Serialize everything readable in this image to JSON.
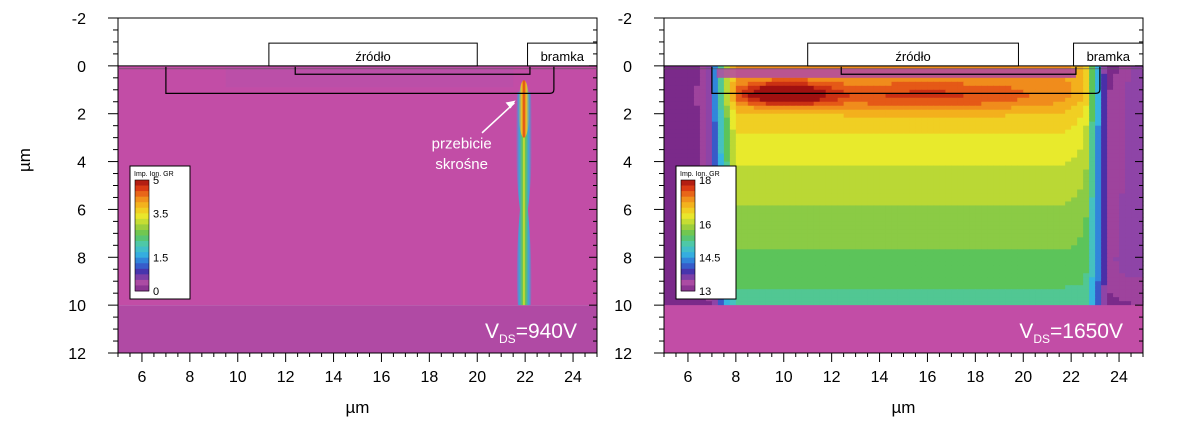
{
  "chart_data": {
    "type": "heatmap",
    "y_axis_label": "µm",
    "panels": [
      {
        "id": "left",
        "x_axis_label": "µm",
        "x_ticks": [
          "6",
          "8",
          "10",
          "12",
          "14",
          "16",
          "18",
          "20",
          "22",
          "24"
        ],
        "y_ticks": [
          "-2",
          "0",
          "2",
          "4",
          "6",
          "8",
          "10",
          "12"
        ],
        "xlim": [
          5,
          25
        ],
        "ylim": [
          -2,
          12
        ],
        "y_inverted": true,
        "device_labels": {
          "source": "źródło",
          "gate": "bramka"
        },
        "annotation": [
          "przebicie",
          "skrośne"
        ],
        "condition": {
          "base": "V",
          "sub": "DS",
          "value": "=940V"
        },
        "colorbar": {
          "title": "Imp. Ion. GR",
          "min": 0,
          "max": 5,
          "labels": [
            "5",
            "3.5",
            "1.5",
            "0"
          ]
        },
        "field": {
          "background_value": 0.35,
          "bottom_layer_value": 0.25,
          "breakdown_channel": {
            "x": 21.95,
            "y_from": 0.9,
            "y_to": 10,
            "peak_value": 4.6
          }
        }
      },
      {
        "id": "right",
        "x_axis_label": "µm",
        "x_ticks": [
          "6",
          "8",
          "10",
          "12",
          "14",
          "16",
          "18",
          "20",
          "22",
          "24"
        ],
        "y_ticks": [
          "-2",
          "0",
          "2",
          "4",
          "6",
          "8",
          "10",
          "12"
        ],
        "xlim": [
          5,
          25
        ],
        "ylim": [
          -2,
          12
        ],
        "y_inverted": true,
        "device_labels": {
          "source": "źródło",
          "gate": "bramka"
        },
        "condition": {
          "base": "V",
          "sub": "DS",
          "value": "=1650V"
        },
        "colorbar": {
          "title": "Imp. Ion. GR",
          "min": 13,
          "max": 18,
          "labels": [
            "18",
            "16",
            "14.5",
            "13"
          ]
        },
        "field": {
          "peak_value": 18,
          "peak_location": {
            "x": 10,
            "y": 1.2
          },
          "bottom_value": 14.3,
          "depletion_edge_depth": 10
        }
      }
    ]
  },
  "colors": {
    "pink": "#c24da6",
    "palette": [
      "#7b2a8a",
      "#b04fa6",
      "#4a2fa8",
      "#2f6fd8",
      "#36b4e0",
      "#4cc8b0",
      "#5cc45a",
      "#a3cf3a",
      "#e8ea2c",
      "#f4c21e",
      "#f08c1c",
      "#e04015",
      "#a01010"
    ]
  }
}
